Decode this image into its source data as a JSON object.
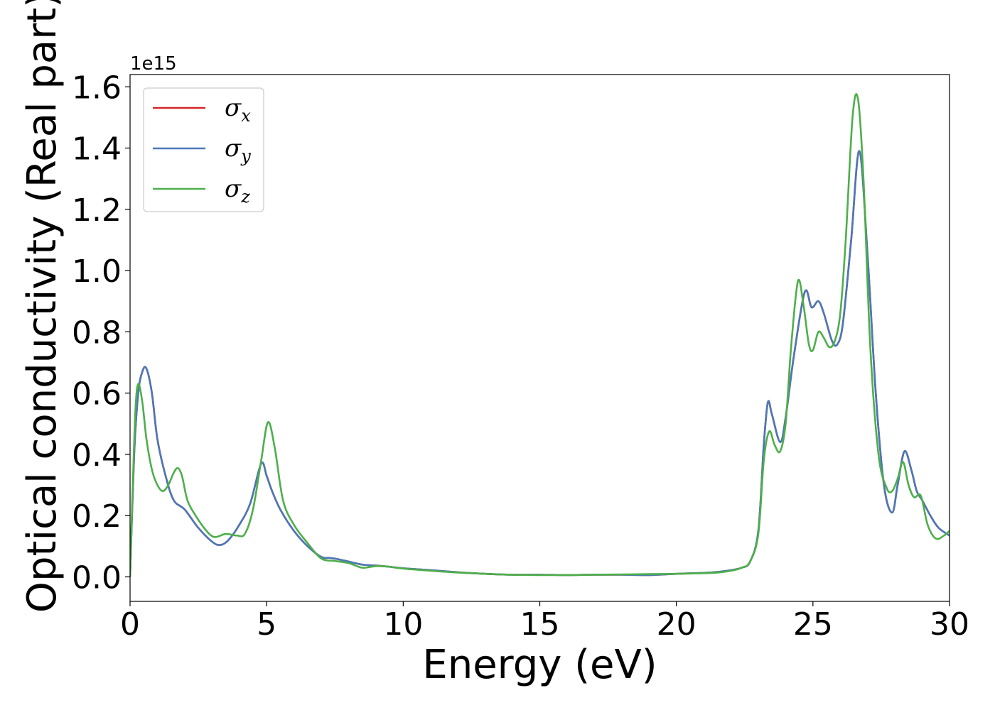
{
  "chart_data": {
    "type": "line",
    "xlabel": "Energy (eV)",
    "ylabel": "Optical conductivity (Real part)",
    "y_offset_label": "1e15",
    "xlim": [
      0,
      30
    ],
    "ylim": [
      -0.08,
      1.64
    ],
    "x_ticks": [
      0,
      5,
      10,
      15,
      20,
      25,
      30
    ],
    "x_tick_labels": [
      "0",
      "5",
      "10",
      "15",
      "20",
      "25",
      "30"
    ],
    "y_ticks": [
      0.0,
      0.2,
      0.4,
      0.6,
      0.8,
      1.0,
      1.2,
      1.4,
      1.6
    ],
    "y_tick_labels": [
      "0.0",
      "0.2",
      "0.4",
      "0.6",
      "0.8",
      "1.0",
      "1.2",
      "1.4",
      "1.6"
    ],
    "grid": false,
    "legend_position": "top-left",
    "series": [
      {
        "name": "σx",
        "label_base": "σ",
        "label_sub": "x",
        "color": "#d62728",
        "x": [
          0,
          0.15,
          0.3,
          0.45,
          0.6,
          0.8,
          1.0,
          1.3,
          1.6,
          2.0,
          2.5,
          3.0,
          3.3,
          3.6,
          4.0,
          4.4,
          4.8,
          5.0,
          5.2,
          5.5,
          6.0,
          6.5,
          7.0,
          7.3,
          7.6,
          8.0,
          8.5,
          9.0,
          9.5,
          10,
          11,
          12,
          13,
          14,
          15,
          16,
          17,
          18,
          19,
          20,
          21,
          21.5,
          22,
          22.4,
          22.7,
          23.0,
          23.2,
          23.35,
          23.5,
          23.8,
          24.0,
          24.3,
          24.7,
          24.95,
          25.2,
          25.4,
          25.7,
          25.9,
          26.1,
          26.4,
          26.7,
          27.0,
          27.3,
          27.6,
          27.9,
          28.1,
          28.35,
          28.6,
          28.8,
          29.0,
          29.3,
          29.6,
          30
        ],
        "y": [
          0.0,
          0.4,
          0.6,
          0.67,
          0.68,
          0.6,
          0.45,
          0.33,
          0.25,
          0.22,
          0.16,
          0.115,
          0.104,
          0.12,
          0.17,
          0.24,
          0.37,
          0.33,
          0.28,
          0.22,
          0.15,
          0.1,
          0.065,
          0.062,
          0.058,
          0.05,
          0.04,
          0.037,
          0.033,
          0.028,
          0.022,
          0.015,
          0.01,
          0.007,
          0.007,
          0.006,
          0.007,
          0.007,
          0.006,
          0.01,
          0.013,
          0.016,
          0.022,
          0.03,
          0.05,
          0.15,
          0.43,
          0.57,
          0.53,
          0.44,
          0.52,
          0.72,
          0.93,
          0.88,
          0.9,
          0.86,
          0.77,
          0.76,
          0.83,
          1.1,
          1.39,
          1.05,
          0.6,
          0.3,
          0.21,
          0.3,
          0.41,
          0.35,
          0.28,
          0.25,
          0.2,
          0.16,
          0.135
        ]
      },
      {
        "name": "σy",
        "label_base": "σ",
        "label_sub": "y",
        "color": "#4a78b8",
        "x": [
          0,
          0.15,
          0.3,
          0.45,
          0.6,
          0.8,
          1.0,
          1.3,
          1.6,
          2.0,
          2.5,
          3.0,
          3.3,
          3.6,
          4.0,
          4.4,
          4.8,
          5.0,
          5.2,
          5.5,
          6.0,
          6.5,
          7.0,
          7.3,
          7.6,
          8.0,
          8.5,
          9.0,
          9.5,
          10,
          11,
          12,
          13,
          14,
          15,
          16,
          17,
          18,
          19,
          20,
          21,
          21.5,
          22,
          22.4,
          22.7,
          23.0,
          23.2,
          23.35,
          23.5,
          23.8,
          24.0,
          24.3,
          24.7,
          24.95,
          25.2,
          25.4,
          25.7,
          25.9,
          26.1,
          26.4,
          26.7,
          27.0,
          27.3,
          27.6,
          27.9,
          28.1,
          28.35,
          28.6,
          28.8,
          29.0,
          29.3,
          29.6,
          30
        ],
        "y": [
          0.0,
          0.4,
          0.6,
          0.67,
          0.68,
          0.6,
          0.45,
          0.33,
          0.25,
          0.22,
          0.16,
          0.115,
          0.104,
          0.12,
          0.17,
          0.24,
          0.37,
          0.33,
          0.28,
          0.22,
          0.15,
          0.1,
          0.065,
          0.062,
          0.058,
          0.05,
          0.04,
          0.037,
          0.033,
          0.028,
          0.022,
          0.015,
          0.01,
          0.007,
          0.007,
          0.006,
          0.007,
          0.007,
          0.006,
          0.01,
          0.013,
          0.016,
          0.022,
          0.03,
          0.05,
          0.15,
          0.43,
          0.57,
          0.53,
          0.44,
          0.52,
          0.72,
          0.93,
          0.88,
          0.9,
          0.86,
          0.77,
          0.76,
          0.83,
          1.1,
          1.39,
          1.05,
          0.6,
          0.3,
          0.21,
          0.3,
          0.41,
          0.35,
          0.28,
          0.25,
          0.2,
          0.16,
          0.135
        ]
      },
      {
        "name": "σz",
        "label_base": "σ",
        "label_sub": "z",
        "color": "#4daf4a",
        "x": [
          0,
          0.1,
          0.2,
          0.3,
          0.45,
          0.6,
          0.8,
          1.0,
          1.2,
          1.4,
          1.6,
          1.75,
          1.9,
          2.1,
          2.4,
          2.8,
          3.1,
          3.5,
          3.9,
          4.2,
          4.5,
          4.8,
          5.05,
          5.3,
          5.6,
          6.0,
          6.5,
          7.0,
          7.5,
          8.0,
          8.5,
          9.0,
          9.5,
          10,
          11,
          12,
          13,
          14,
          15,
          16,
          17,
          18,
          19,
          20,
          21,
          21.5,
          22,
          22.4,
          22.7,
          23.0,
          23.2,
          23.4,
          23.6,
          23.8,
          24.0,
          24.2,
          24.45,
          24.65,
          24.85,
          25.0,
          25.2,
          25.4,
          25.6,
          25.8,
          26.0,
          26.2,
          26.45,
          26.65,
          26.85,
          27.1,
          27.4,
          27.7,
          27.9,
          28.1,
          28.3,
          28.5,
          28.7,
          28.95,
          29.2,
          29.5,
          29.8,
          30
        ],
        "y": [
          0.0,
          0.3,
          0.55,
          0.63,
          0.57,
          0.45,
          0.35,
          0.3,
          0.28,
          0.3,
          0.34,
          0.355,
          0.33,
          0.25,
          0.2,
          0.15,
          0.13,
          0.14,
          0.135,
          0.14,
          0.22,
          0.38,
          0.505,
          0.42,
          0.25,
          0.17,
          0.11,
          0.06,
          0.052,
          0.045,
          0.03,
          0.035,
          0.033,
          0.027,
          0.02,
          0.014,
          0.01,
          0.007,
          0.006,
          0.006,
          0.007,
          0.008,
          0.009,
          0.01,
          0.012,
          0.014,
          0.02,
          0.03,
          0.05,
          0.14,
          0.38,
          0.475,
          0.43,
          0.41,
          0.5,
          0.75,
          0.965,
          0.89,
          0.76,
          0.74,
          0.8,
          0.78,
          0.75,
          0.77,
          0.86,
          1.1,
          1.5,
          1.56,
          1.3,
          0.75,
          0.4,
          0.29,
          0.28,
          0.32,
          0.375,
          0.3,
          0.26,
          0.265,
          0.17,
          0.125,
          0.135,
          0.15
        ]
      }
    ]
  }
}
